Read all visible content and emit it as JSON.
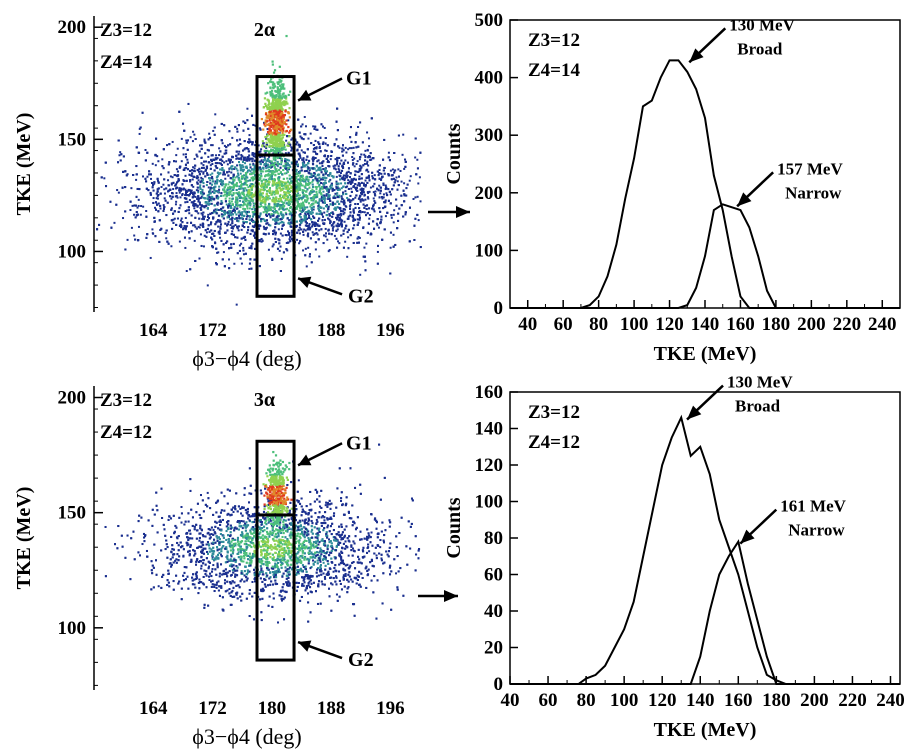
{
  "colors": {
    "density_low": "#1a2f8f",
    "density_mid": "#2e8b9a",
    "density_mid2": "#4cbf7a",
    "density_high": "#8fd14f",
    "density_hot": "#e08a2a",
    "density_peak": "#e03a1e",
    "line": "#000000"
  },
  "chart_data": [
    {
      "type": "scatter",
      "panel": "top-left",
      "title": "2α",
      "xlabel": "ϕ3−ϕ4 (deg)",
      "ylabel": "TKE (MeV)",
      "xlim": [
        156,
        200
      ],
      "ylim": [
        73,
        205
      ],
      "x_ticks": [
        164,
        172,
        180,
        188,
        196
      ],
      "y_ticks": [
        100,
        150,
        200
      ],
      "z_labels": [
        "Z3=12",
        "Z4=14"
      ],
      "gates": [
        {
          "name": "G1",
          "x_range": [
            178,
            183
          ],
          "y_range": [
            143,
            178
          ]
        },
        {
          "name": "G2",
          "x_range": [
            178,
            183
          ],
          "y_range": [
            80,
            143
          ]
        }
      ],
      "density": {
        "center_x": 180,
        "center_y": 127,
        "sigma_x": 8.5,
        "sigma_y": 12.5,
        "points": 6500,
        "ridge": {
          "x": 180.5,
          "y_center": 158,
          "sigma_x": 0.7,
          "sigma_y": 9,
          "points": 700
        }
      }
    },
    {
      "type": "line",
      "panel": "top-right",
      "xlabel": "TKE (MeV)",
      "ylabel": "Counts",
      "xlim": [
        30,
        250
      ],
      "ylim": [
        0,
        500
      ],
      "x_ticks": [
        40,
        60,
        80,
        100,
        120,
        140,
        160,
        180,
        200,
        220,
        240
      ],
      "y_ticks": [
        0,
        100,
        200,
        300,
        400,
        500
      ],
      "z_labels": [
        "Z3=12",
        "Z4=14"
      ],
      "series": [
        {
          "name": "Broad",
          "x": [
            30,
            70,
            75,
            80,
            85,
            90,
            95,
            100,
            105,
            110,
            115,
            120,
            125,
            130,
            135,
            140,
            145,
            150,
            155,
            160,
            165,
            250
          ],
          "y": [
            0,
            0,
            5,
            20,
            55,
            110,
            190,
            260,
            350,
            360,
            400,
            430,
            430,
            410,
            380,
            330,
            230,
            170,
            90,
            20,
            0,
            0
          ]
        },
        {
          "name": "Narrow",
          "x": [
            30,
            125,
            130,
            135,
            140,
            145,
            150,
            155,
            160,
            165,
            170,
            175,
            180,
            250
          ],
          "y": [
            0,
            0,
            5,
            35,
            90,
            170,
            180,
            175,
            170,
            140,
            90,
            30,
            0,
            0
          ]
        }
      ],
      "annotations": [
        {
          "text": [
            "130 MeV",
            "Broad"
          ],
          "x": 130,
          "y": 430
        },
        {
          "text": [
            "157 MeV",
            "Narrow"
          ],
          "x": 157,
          "y": 180
        }
      ]
    },
    {
      "type": "scatter",
      "panel": "bottom-left",
      "title": "3α",
      "xlabel": "ϕ3−ϕ4 (deg)",
      "ylabel": "TKE (MeV)",
      "xlim": [
        156,
        200
      ],
      "ylim": [
        73,
        205
      ],
      "x_ticks": [
        164,
        172,
        180,
        188,
        196
      ],
      "y_ticks": [
        100,
        150,
        200
      ],
      "z_labels": [
        "Z3=12",
        "Z4=12"
      ],
      "gates": [
        {
          "name": "G1",
          "x_range": [
            178,
            183
          ],
          "y_range": [
            149,
            181
          ]
        },
        {
          "name": "G2",
          "x_range": [
            178,
            183
          ],
          "y_range": [
            86,
            149
          ]
        }
      ],
      "density": {
        "center_x": 180,
        "center_y": 135,
        "sigma_x": 7.5,
        "sigma_y": 10.5,
        "points": 4200,
        "ridge": {
          "x": 180.5,
          "y_center": 158,
          "sigma_x": 0.7,
          "sigma_y": 7,
          "points": 450
        }
      }
    },
    {
      "type": "line",
      "panel": "bottom-right",
      "xlabel": "TKE (MeV)",
      "ylabel": "Counts",
      "xlim": [
        40,
        245
      ],
      "ylim": [
        0,
        160
      ],
      "x_ticks": [
        40,
        60,
        80,
        100,
        120,
        140,
        160,
        180,
        200,
        220,
        240
      ],
      "y_ticks": [
        0,
        20,
        40,
        60,
        80,
        100,
        120,
        140,
        160
      ],
      "z_labels": [
        "Z3=12",
        "Z4=12"
      ],
      "series": [
        {
          "name": "Broad",
          "x": [
            40,
            76,
            80,
            85,
            90,
            95,
            100,
            105,
            110,
            115,
            120,
            125,
            130,
            135,
            140,
            145,
            150,
            155,
            160,
            165,
            170,
            175,
            180,
            185,
            200,
            245
          ],
          "y": [
            0,
            0,
            3,
            5,
            10,
            20,
            30,
            45,
            70,
            95,
            120,
            135,
            146,
            125,
            130,
            115,
            90,
            75,
            60,
            40,
            20,
            5,
            2,
            0,
            0,
            0
          ]
        },
        {
          "name": "Narrow",
          "x": [
            40,
            135,
            140,
            145,
            150,
            155,
            160,
            165,
            170,
            175,
            180,
            245
          ],
          "y": [
            0,
            0,
            15,
            40,
            60,
            70,
            78,
            55,
            35,
            15,
            0,
            0
          ]
        }
      ],
      "annotations": [
        {
          "text": [
            "130 MeV",
            "Broad"
          ],
          "x": 132,
          "y": 146
        },
        {
          "text": [
            "161 MeV",
            "Narrow"
          ],
          "x": 160,
          "y": 78
        }
      ]
    }
  ]
}
